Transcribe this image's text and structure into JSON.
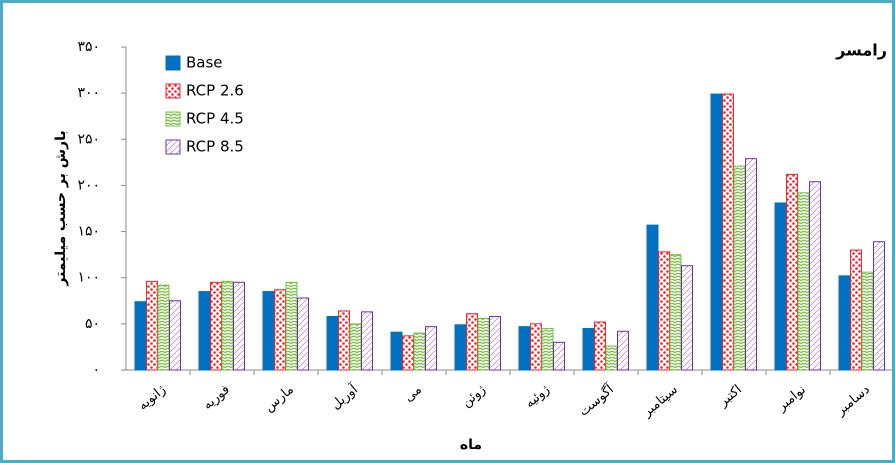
{
  "chart_data": {
    "type": "bar",
    "title": "رامسر",
    "ylabel": "بارش بر حسب میلیمتر",
    "xlabel": "ماه",
    "categories": [
      "ژانویه",
      "فوریه",
      "مارس",
      "آوریل",
      "می",
      "ژوئن",
      "ژوئیه",
      "آگوست",
      "سپتامبر",
      "اکتبر",
      "نوامبر",
      "دسامبر"
    ],
    "series": [
      {
        "name": "Base",
        "color": "#0070c0",
        "pattern": "solid",
        "values": [
          74,
          85,
          85,
          58,
          41,
          49,
          47,
          45,
          157,
          299,
          181,
          102
        ]
      },
      {
        "name": "RCP 2.6",
        "color": "#e8262c",
        "pattern": "dots",
        "values": [
          96,
          95,
          87,
          64,
          37,
          61,
          50,
          52,
          128,
          299,
          212,
          130
        ]
      },
      {
        "name": "RCP 4.5",
        "color": "#7ac143",
        "pattern": "stripes",
        "values": [
          92,
          96,
          95,
          50,
          40,
          56,
          45,
          26,
          125,
          221,
          192,
          106
        ]
      },
      {
        "name": "RCP 8.5",
        "color": "#7030a0",
        "pattern": "hatch",
        "values": [
          75,
          95,
          78,
          63,
          47,
          58,
          30,
          42,
          113,
          229,
          204,
          139
        ]
      }
    ],
    "ylim": [
      0,
      350
    ],
    "yticks": [
      {
        "value": 0,
        "label": "۰"
      },
      {
        "value": 50,
        "label": "۵۰"
      },
      {
        "value": 100,
        "label": "۱۰۰"
      },
      {
        "value": 150,
        "label": "۱۵۰"
      },
      {
        "value": 200,
        "label": "۲۰۰"
      },
      {
        "value": 250,
        "label": "۲۵۰"
      },
      {
        "value": 300,
        "label": "۳۰۰"
      },
      {
        "value": 350,
        "label": "۳۵۰"
      }
    ],
    "grid": false,
    "legend": "top-left"
  }
}
